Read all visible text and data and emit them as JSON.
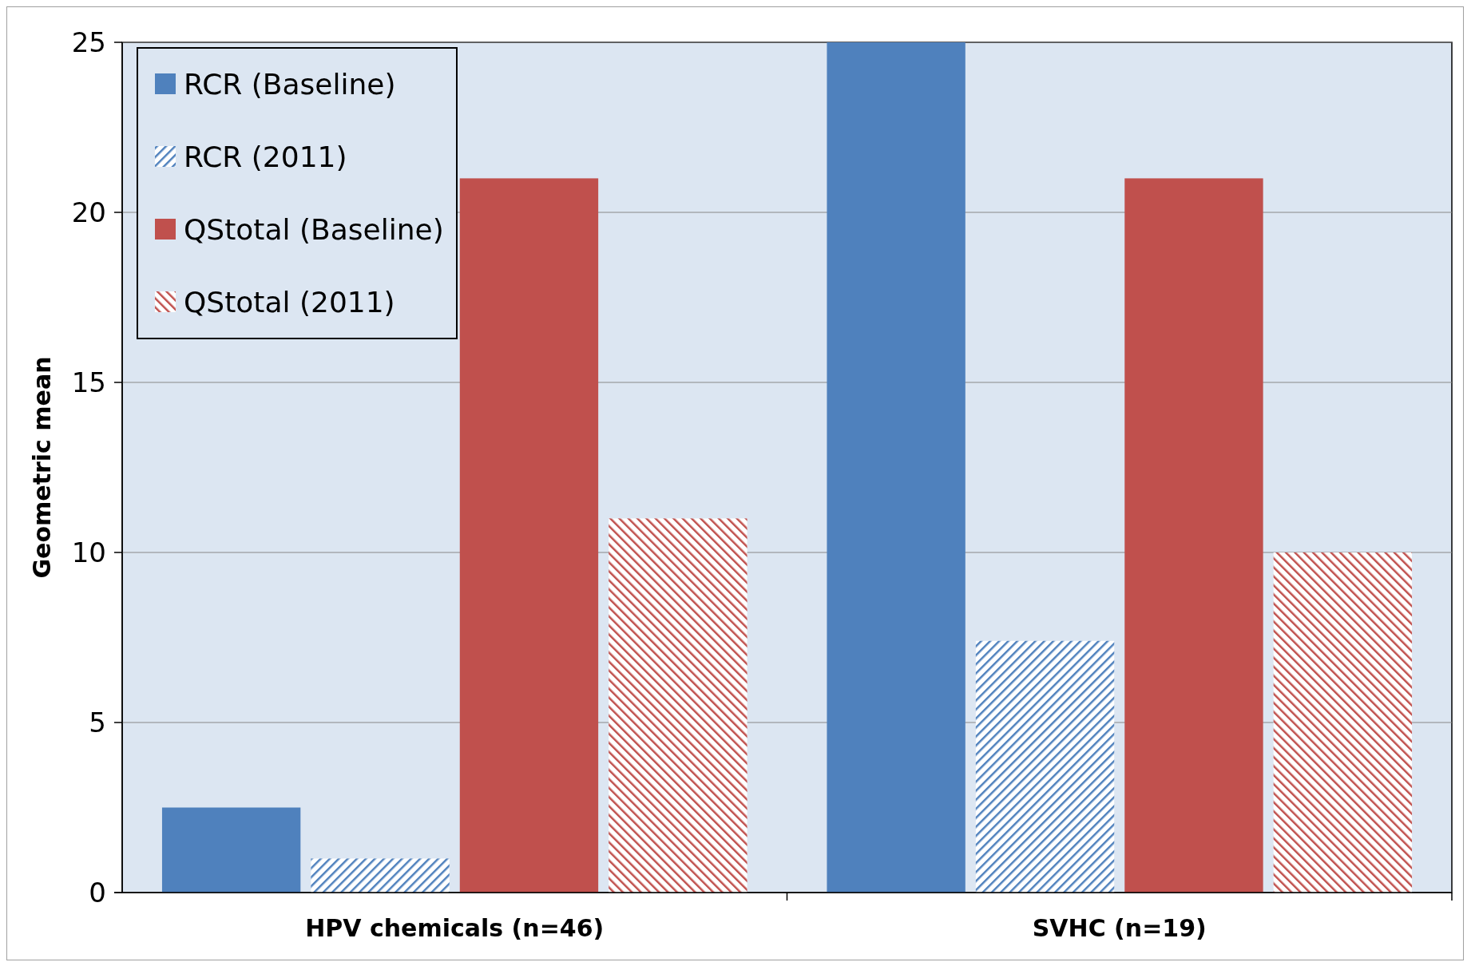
{
  "chart_data": {
    "type": "bar",
    "ylabel": "Geometric mean",
    "categories": [
      "HPV chemicals (n=46)",
      "SVHC (n=19)"
    ],
    "ylim": [
      0,
      25
    ],
    "yticks": [
      0,
      5,
      10,
      15,
      20,
      25
    ],
    "grid": "y",
    "legend": "top left",
    "series": [
      {
        "name": "RCR (Baseline)",
        "color": "#4f81bd",
        "values": [
          2.5,
          25
        ]
      },
      {
        "name": "RCR (2011)",
        "color": "#4f81bd",
        "values": [
          1.0,
          7.4
        ]
      },
      {
        "name": "QStotal (Baseline)",
        "color": "#c0504d",
        "values": [
          21,
          21
        ]
      },
      {
        "name": "QStotal (2011)",
        "color": "#c0504d",
        "values": [
          11,
          10
        ]
      }
    ]
  }
}
